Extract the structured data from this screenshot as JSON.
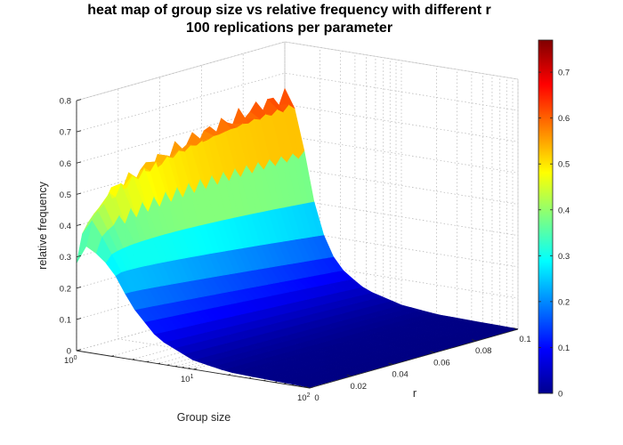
{
  "chart_data": {
    "type": "surface",
    "title": [
      "heat map of group size vs relative frequency with different r",
      "100 replications per parameter"
    ],
    "xlabel": "Group size",
    "ylabel": "r",
    "zlabel": "relative frequency",
    "x_scale": "log",
    "x_range": [
      1,
      100
    ],
    "x_ticks": [
      {
        "base": "10",
        "exp": "0"
      },
      {
        "base": "10",
        "exp": "1"
      },
      {
        "base": "10",
        "exp": "2"
      }
    ],
    "y_range": [
      0,
      0.1
    ],
    "y_ticks": [
      "0",
      "0.02",
      "0.04",
      "0.06",
      "0.08",
      "0.1"
    ],
    "z_range": [
      0,
      0.8
    ],
    "z_ticks": [
      "0",
      "0.1",
      "0.2",
      "0.3",
      "0.4",
      "0.5",
      "0.6",
      "0.7",
      "0.8"
    ],
    "colormap": "jet",
    "colorbar": {
      "range": [
        0,
        0.77
      ],
      "ticks": [
        "0",
        "0.1",
        "0.2",
        "0.3",
        "0.4",
        "0.5",
        "0.6",
        "0.7"
      ]
    },
    "grid": true,
    "surface_profile": {
      "description_r0": "relative frequency at r = 0 across group size",
      "group_size": [
        1,
        1.2,
        1.5,
        2,
        3,
        5,
        10,
        20,
        50,
        100
      ],
      "freq_at_r0": [
        0.28,
        0.34,
        0.32,
        0.28,
        0.17,
        0.08,
        0.03,
        0.01,
        0.005,
        0.002
      ],
      "freq_at_r_max_group_size_1": 0.76
    }
  }
}
